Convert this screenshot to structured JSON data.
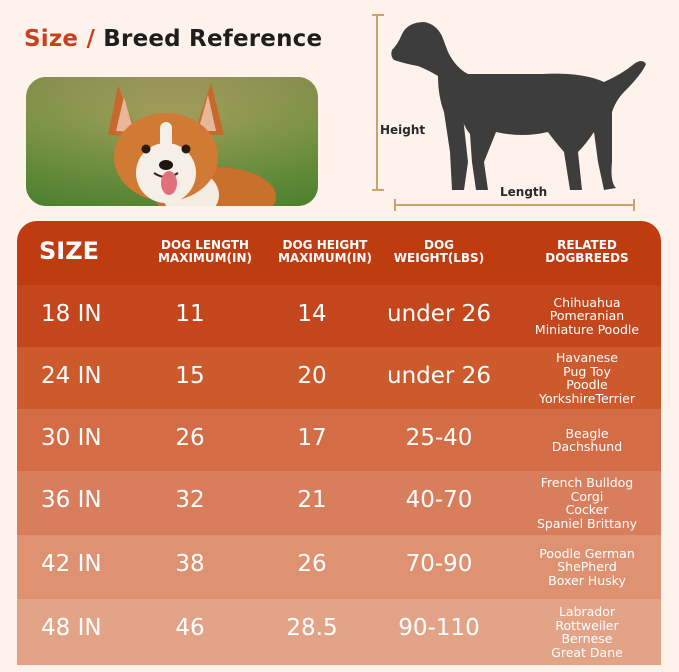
{
  "header": {
    "title_accent": "Size",
    "title_slash": "/",
    "title_rest": "Breed Reference"
  },
  "diagram": {
    "height_label": "Height",
    "length_label": "Length",
    "icon": "dog-silhouette-icon"
  },
  "photo": {
    "subject": "corgi-photo"
  },
  "table": {
    "headers": {
      "size": "SIZE",
      "length_l1": "DOG LENGTH",
      "length_l2": "MAXIMUM(IN)",
      "height_l1": "DOG HEIGHT",
      "height_l2": "MAXIMUM(IN)",
      "weight_l1": "DOG",
      "weight_l2": "WEIGHT(LBS)",
      "breeds_l1": "RELATED",
      "breeds_l2": "DOGBREEDS"
    },
    "rows": [
      {
        "size": "18 IN",
        "length": "11",
        "height": "14",
        "weight": "under 26",
        "breeds": [
          "Chihuahua",
          "Pomeranian",
          "Miniature Poodle"
        ],
        "color": "#c4461c"
      },
      {
        "size": "24 IN",
        "length": "15",
        "height": "20",
        "weight": "under 26",
        "breeds": [
          "Havanese",
          "Pug Toy",
          "Poodle",
          "YorkshireTerrier"
        ],
        "color": "#cc5a2d"
      },
      {
        "size": "30 IN",
        "length": "26",
        "height": "17",
        "weight": "25-40",
        "breeds": [
          "Beagle",
          "Dachshund"
        ],
        "color": "#d46c45"
      },
      {
        "size": "36 IN",
        "length": "32",
        "height": "21",
        "weight": "40-70",
        "breeds": [
          "French Bulldog",
          "Corgi",
          "Cocker",
          "Spaniel Brittany"
        ],
        "color": "#d97e5c"
      },
      {
        "size": "42 IN",
        "length": "38",
        "height": "26",
        "weight": "70-90",
        "breeds": [
          "Poodle German",
          "ShePherd",
          "Boxer Husky"
        ],
        "color": "#de9272"
      },
      {
        "size": "48 IN",
        "length": "46",
        "height": "28.5",
        "weight": "90-110",
        "breeds": [
          "Labrador",
          "Rottweiler",
          "Bernese",
          "Great Dane"
        ],
        "color": "#e3a387"
      }
    ]
  }
}
